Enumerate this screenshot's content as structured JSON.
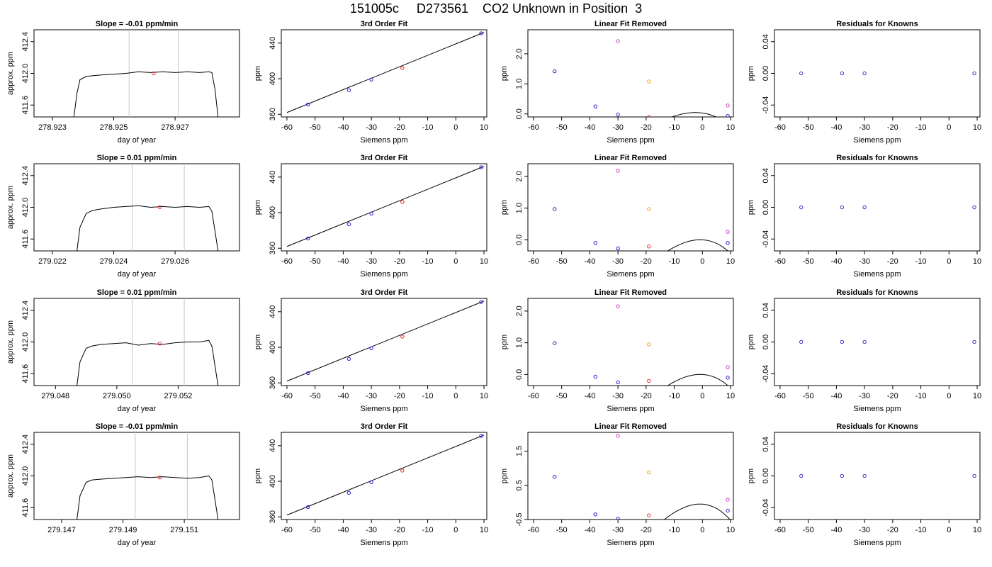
{
  "page_title": "151005c     D273561    CO2 Unknown in Position  3",
  "chart_data": [
    {
      "type": "line",
      "title": "Slope =  -0.01  ppm/min",
      "xlabel": "day of year",
      "ylabel": "approx. ppm",
      "xlim": [
        278.9224,
        278.9291
      ],
      "ylim": [
        411.45,
        412.55
      ],
      "xticks": [
        "278.923",
        "278.925",
        "278.927"
      ],
      "yticks": [
        "411.6",
        "412.0",
        "412.4"
      ],
      "vlines": [
        278.9255,
        278.9271
      ],
      "trace_x": [
        278.9237,
        278.9238,
        278.9239,
        278.9241,
        278.9243,
        278.9246,
        278.925,
        278.9254,
        278.9258,
        278.9262,
        278.9266,
        278.927,
        278.9274,
        278.9278,
        278.9281,
        278.9282,
        278.9283,
        278.9284
      ],
      "trace_y": [
        411.45,
        411.75,
        411.92,
        411.96,
        411.97,
        411.98,
        411.99,
        412.0,
        412.02,
        412.01,
        412.02,
        412.01,
        412.02,
        412.01,
        412.02,
        412.01,
        411.8,
        411.45
      ],
      "marker": {
        "x": 278.9263,
        "y": 412.0,
        "color": "#e03030"
      }
    },
    {
      "type": "scatter",
      "title": "3rd Order Fit",
      "xlabel": "Siemens ppm",
      "ylabel": "ppm",
      "xlim": [
        -62,
        11
      ],
      "ylim": [
        357,
        455
      ],
      "xticks": [
        "-60",
        "-50",
        "-40",
        "-30",
        "-20",
        "-10",
        "0",
        "10"
      ],
      "yticks": [
        "360",
        "400",
        "440"
      ],
      "points": [
        {
          "x": -52.5,
          "y": 371,
          "color": "#2020d0"
        },
        {
          "x": -38,
          "y": 387,
          "color": "#2020d0"
        },
        {
          "x": -30,
          "y": 399,
          "color": "#2020d0"
        },
        {
          "x": -19,
          "y": 412,
          "color": "#e03030"
        },
        {
          "x": 9,
          "y": 451,
          "color": "#2020d0"
        }
      ],
      "fit_line": [
        [
          -60,
          362
        ],
        [
          10,
          452
        ]
      ]
    },
    {
      "type": "scatter",
      "title": "Linear Fit Removed",
      "xlabel": "Siemens ppm",
      "ylabel": "ppm",
      "xlim": [
        -62,
        11
      ],
      "ylim": [
        -0.1,
        2.8
      ],
      "xticks": [
        "-60",
        "-50",
        "-40",
        "-30",
        "-20",
        "-10",
        "0",
        "10"
      ],
      "yticks": [
        "0.0",
        "1.0",
        "2.0"
      ],
      "points": [
        {
          "x": -52.5,
          "y": 1.42,
          "color": "#2020d0"
        },
        {
          "x": -38,
          "y": 0.25,
          "color": "#2020d0"
        },
        {
          "x": -30,
          "y": -0.02,
          "color": "#2020d0"
        },
        {
          "x": -19,
          "y": -0.1,
          "color": "#e03030"
        },
        {
          "x": 9,
          "y": -0.07,
          "color": "#2020d0"
        },
        {
          "x": -30,
          "y": 2.42,
          "color": "#cc40cc"
        },
        {
          "x": -19,
          "y": 1.08,
          "color": "#f0a020"
        },
        {
          "x": 9,
          "y": 0.28,
          "color": "#cc40cc"
        }
      ],
      "curve": [
        -3.6e-05,
        -0.0027,
        -0.013,
        0.03
      ]
    },
    {
      "type": "scatter",
      "title": "Residuals for Knowns",
      "xlabel": "Siemens ppm",
      "ylabel": "ppm",
      "xlim": [
        -62,
        11
      ],
      "ylim": [
        -0.055,
        0.055
      ],
      "xticks": [
        "-60",
        "-50",
        "-40",
        "-30",
        "-20",
        "-10",
        "0",
        "10"
      ],
      "yticks": [
        "-0.04",
        "0.00",
        "0.04"
      ],
      "points": [
        {
          "x": -52.5,
          "y": 0,
          "color": "#5020d0"
        },
        {
          "x": -38,
          "y": 0,
          "color": "#5020d0"
        },
        {
          "x": -30,
          "y": 0,
          "color": "#5020d0"
        },
        {
          "x": 9,
          "y": 0,
          "color": "#5020d0"
        }
      ]
    },
    {
      "type": "line",
      "title": "Slope =  0.01  ppm/min",
      "xlabel": "day of year",
      "ylabel": "approx. ppm",
      "xlim": [
        279.0214,
        279.0281
      ],
      "ylim": [
        411.45,
        412.55
      ],
      "xticks": [
        "279.022",
        "279.024",
        "279.026"
      ],
      "yticks": [
        "411.6",
        "412.0",
        "412.4"
      ],
      "vlines": [
        279.0246,
        279.0263
      ],
      "trace_x": [
        279.0228,
        279.0229,
        279.0231,
        279.0233,
        279.0236,
        279.024,
        279.0244,
        279.0248,
        279.0252,
        279.0256,
        279.026,
        279.0264,
        279.0268,
        279.0271,
        279.0272,
        279.0273,
        279.0274
      ],
      "trace_y": [
        411.45,
        411.75,
        411.92,
        411.96,
        411.98,
        412.0,
        412.01,
        412.02,
        412.0,
        412.01,
        412.0,
        412.01,
        412.0,
        412.01,
        411.95,
        411.7,
        411.45
      ],
      "marker": {
        "x": 279.0255,
        "y": 412.0,
        "color": "#e03030"
      }
    },
    {
      "type": "scatter",
      "title": "3rd Order Fit",
      "xlabel": "Siemens ppm",
      "ylabel": "ppm",
      "xlim": [
        -62,
        11
      ],
      "ylim": [
        357,
        455
      ],
      "xticks": [
        "-60",
        "-50",
        "-40",
        "-30",
        "-20",
        "-10",
        "0",
        "10"
      ],
      "yticks": [
        "360",
        "400",
        "440"
      ],
      "points": [
        {
          "x": -52.5,
          "y": 371,
          "color": "#2020d0"
        },
        {
          "x": -38,
          "y": 387,
          "color": "#2020d0"
        },
        {
          "x": -30,
          "y": 399,
          "color": "#2020d0"
        },
        {
          "x": -19,
          "y": 412,
          "color": "#e03030"
        },
        {
          "x": 9,
          "y": 451,
          "color": "#2020d0"
        }
      ],
      "fit_line": [
        [
          -60,
          362
        ],
        [
          10,
          452
        ]
      ]
    },
    {
      "type": "scatter",
      "title": "Linear Fit Removed",
      "xlabel": "Siemens ppm",
      "ylabel": "ppm",
      "xlim": [
        -62,
        11
      ],
      "ylim": [
        -0.35,
        2.4
      ],
      "xticks": [
        "-60",
        "-50",
        "-40",
        "-30",
        "-20",
        "-10",
        "0",
        "10"
      ],
      "yticks": [
        "0.0",
        "1.0",
        "2.0"
      ],
      "points": [
        {
          "x": -52.5,
          "y": 0.97,
          "color": "#2020d0"
        },
        {
          "x": -38,
          "y": -0.1,
          "color": "#2020d0"
        },
        {
          "x": -30,
          "y": -0.27,
          "color": "#2020d0"
        },
        {
          "x": -19,
          "y": -0.21,
          "color": "#e03030"
        },
        {
          "x": 9,
          "y": -0.1,
          "color": "#2020d0"
        },
        {
          "x": -30,
          "y": 2.18,
          "color": "#cc40cc"
        },
        {
          "x": -19,
          "y": 0.97,
          "color": "#f0a020"
        },
        {
          "x": 9,
          "y": 0.25,
          "color": "#cc40cc"
        }
      ],
      "curve": [
        -4.8e-05,
        -0.0033,
        -0.005,
        0.0
      ]
    },
    {
      "type": "scatter",
      "title": "Residuals for Knowns",
      "xlabel": "Siemens ppm",
      "ylabel": "ppm",
      "xlim": [
        -62,
        11
      ],
      "ylim": [
        -0.055,
        0.055
      ],
      "xticks": [
        "-60",
        "-50",
        "-40",
        "-30",
        "-20",
        "-10",
        "0",
        "10"
      ],
      "yticks": [
        "-0.04",
        "0.00",
        "0.04"
      ],
      "points": [
        {
          "x": -52.5,
          "y": 0,
          "color": "#5020d0"
        },
        {
          "x": -38,
          "y": 0,
          "color": "#5020d0"
        },
        {
          "x": -30,
          "y": 0,
          "color": "#5020d0"
        },
        {
          "x": 9,
          "y": 0,
          "color": "#5020d0"
        }
      ]
    },
    {
      "type": "line",
      "title": "Slope =  0.01  ppm/min",
      "xlabel": "day of year",
      "ylabel": "approx. ppm",
      "xlim": [
        279.0473,
        279.054
      ],
      "ylim": [
        411.45,
        412.55
      ],
      "xticks": [
        "279.048",
        "279.050",
        "279.052"
      ],
      "yticks": [
        "411.6",
        "412.0",
        "412.4"
      ],
      "vlines": [
        279.0505,
        279.0522
      ],
      "trace_x": [
        279.0487,
        279.0488,
        279.049,
        279.0492,
        279.0495,
        279.0499,
        279.0503,
        279.0507,
        279.0511,
        279.0515,
        279.0519,
        279.0523,
        279.0527,
        279.053,
        279.0531,
        279.0532,
        279.0533
      ],
      "trace_y": [
        411.45,
        411.75,
        411.92,
        411.95,
        411.97,
        411.98,
        411.99,
        411.96,
        411.98,
        411.97,
        411.99,
        412.0,
        412.0,
        412.02,
        411.95,
        411.7,
        411.45
      ],
      "marker": {
        "x": 279.0514,
        "y": 411.98,
        "color": "#e03030"
      }
    },
    {
      "type": "scatter",
      "title": "3rd Order Fit",
      "xlabel": "Siemens ppm",
      "ylabel": "ppm",
      "xlim": [
        -62,
        11
      ],
      "ylim": [
        357,
        455
      ],
      "xticks": [
        "-60",
        "-50",
        "-40",
        "-30",
        "-20",
        "-10",
        "0",
        "10"
      ],
      "yticks": [
        "360",
        "400",
        "440"
      ],
      "points": [
        {
          "x": -52.5,
          "y": 371,
          "color": "#2020d0"
        },
        {
          "x": -38,
          "y": 387,
          "color": "#2020d0"
        },
        {
          "x": -30,
          "y": 399,
          "color": "#2020d0"
        },
        {
          "x": -19,
          "y": 412,
          "color": "#e03030"
        },
        {
          "x": 9,
          "y": 451,
          "color": "#2020d0"
        }
      ],
      "fit_line": [
        [
          -60,
          362
        ],
        [
          10,
          452
        ]
      ]
    },
    {
      "type": "scatter",
      "title": "Linear Fit Removed",
      "xlabel": "Siemens ppm",
      "ylabel": "ppm",
      "xlim": [
        -62,
        11
      ],
      "ylim": [
        -0.35,
        2.4
      ],
      "xticks": [
        "-60",
        "-50",
        "-40",
        "-30",
        "-20",
        "-10",
        "0",
        "10"
      ],
      "yticks": [
        "0.0",
        "1.0",
        "2.0"
      ],
      "points": [
        {
          "x": -52.5,
          "y": 0.99,
          "color": "#2020d0"
        },
        {
          "x": -38,
          "y": -0.07,
          "color": "#2020d0"
        },
        {
          "x": -30,
          "y": -0.25,
          "color": "#2020d0"
        },
        {
          "x": -19,
          "y": -0.2,
          "color": "#e03030"
        },
        {
          "x": 9,
          "y": -0.1,
          "color": "#2020d0"
        },
        {
          "x": -30,
          "y": 2.15,
          "color": "#cc40cc"
        },
        {
          "x": -19,
          "y": 0.95,
          "color": "#f0a020"
        },
        {
          "x": 9,
          "y": 0.23,
          "color": "#cc40cc"
        }
      ],
      "curve": [
        -4.7e-05,
        -0.0033,
        -0.005,
        0.0
      ]
    },
    {
      "type": "scatter",
      "title": "Residuals for Knowns",
      "xlabel": "Siemens ppm",
      "ylabel": "ppm",
      "xlim": [
        -62,
        11
      ],
      "ylim": [
        -0.055,
        0.055
      ],
      "xticks": [
        "-60",
        "-50",
        "-40",
        "-30",
        "-20",
        "-10",
        "0",
        "10"
      ],
      "yticks": [
        "-0.04",
        "0.00",
        "0.04"
      ],
      "points": [
        {
          "x": -52.5,
          "y": 0,
          "color": "#5020d0"
        },
        {
          "x": -38,
          "y": 0,
          "color": "#5020d0"
        },
        {
          "x": -30,
          "y": 0,
          "color": "#5020d0"
        },
        {
          "x": 9,
          "y": 0,
          "color": "#5020d0"
        }
      ]
    },
    {
      "type": "line",
      "title": "Slope =  -0.01  ppm/min",
      "xlabel": "day of year",
      "ylabel": "approx. ppm",
      "xlim": [
        279.1461,
        279.1528
      ],
      "ylim": [
        411.45,
        412.55
      ],
      "xticks": [
        "279.147",
        "279.149",
        "279.151"
      ],
      "yticks": [
        "411.6",
        "412.0",
        "412.4"
      ],
      "vlines": [
        279.1494,
        279.1511
      ],
      "trace_x": [
        279.1475,
        279.1476,
        279.1478,
        279.148,
        279.1483,
        279.1487,
        279.1491,
        279.1495,
        279.1499,
        279.1503,
        279.1507,
        279.1511,
        279.1515,
        279.1518,
        279.1519,
        279.152,
        279.1521
      ],
      "trace_y": [
        411.45,
        411.75,
        411.92,
        411.95,
        411.96,
        411.97,
        411.98,
        411.99,
        411.98,
        411.99,
        411.98,
        411.97,
        411.98,
        412.0,
        411.95,
        411.7,
        411.45
      ],
      "marker": {
        "x": 279.1502,
        "y": 411.98,
        "color": "#e03030"
      }
    },
    {
      "type": "scatter",
      "title": "3rd Order Fit",
      "xlabel": "Siemens ppm",
      "ylabel": "ppm",
      "xlim": [
        -62,
        11
      ],
      "ylim": [
        357,
        455
      ],
      "xticks": [
        "-60",
        "-50",
        "-40",
        "-30",
        "-20",
        "-10",
        "0",
        "10"
      ],
      "yticks": [
        "360",
        "400",
        "440"
      ],
      "points": [
        {
          "x": -52.5,
          "y": 371,
          "color": "#2020d0"
        },
        {
          "x": -38,
          "y": 387,
          "color": "#2020d0"
        },
        {
          "x": -30,
          "y": 399,
          "color": "#2020d0"
        },
        {
          "x": -19,
          "y": 412,
          "color": "#e03030"
        },
        {
          "x": 9,
          "y": 451,
          "color": "#2020d0"
        }
      ],
      "fit_line": [
        [
          -60,
          362
        ],
        [
          10,
          452
        ]
      ]
    },
    {
      "type": "scatter",
      "title": "Linear Fit Removed",
      "xlabel": "Siemens ppm",
      "ylabel": "ppm",
      "xlim": [
        -62,
        11
      ],
      "ylim": [
        -0.5,
        2.05
      ],
      "xticks": [
        "-60",
        "-50",
        "-40",
        "-30",
        "-20",
        "-10",
        "0",
        "10"
      ],
      "yticks": [
        "-0.5",
        "0.5",
        "1.5"
      ],
      "points": [
        {
          "x": -52.5,
          "y": 0.75,
          "color": "#2020d0"
        },
        {
          "x": -38,
          "y": -0.35,
          "color": "#2020d0"
        },
        {
          "x": -30,
          "y": -0.48,
          "color": "#2020d0"
        },
        {
          "x": -19,
          "y": -0.38,
          "color": "#e03030"
        },
        {
          "x": 9,
          "y": -0.24,
          "color": "#2020d0"
        },
        {
          "x": -30,
          "y": 1.95,
          "color": "#cc40cc"
        },
        {
          "x": -19,
          "y": 0.88,
          "color": "#f0a020"
        },
        {
          "x": 9,
          "y": 0.08,
          "color": "#cc40cc"
        }
      ],
      "curve": [
        -5.2e-05,
        -0.0036,
        -0.006,
        -0.05
      ]
    },
    {
      "type": "scatter",
      "title": "Residuals for Knowns",
      "xlabel": "Siemens ppm",
      "ylabel": "ppm",
      "xlim": [
        -62,
        11
      ],
      "ylim": [
        -0.055,
        0.055
      ],
      "xticks": [
        "-60",
        "-50",
        "-40",
        "-30",
        "-20",
        "-10",
        "0",
        "10"
      ],
      "yticks": [
        "-0.04",
        "0.00",
        "0.04"
      ],
      "points": [
        {
          "x": -52.5,
          "y": 0,
          "color": "#5020d0"
        },
        {
          "x": -38,
          "y": 0,
          "color": "#5020d0"
        },
        {
          "x": -30,
          "y": 0,
          "color": "#5020d0"
        },
        {
          "x": 9,
          "y": 0,
          "color": "#5020d0"
        }
      ]
    }
  ]
}
